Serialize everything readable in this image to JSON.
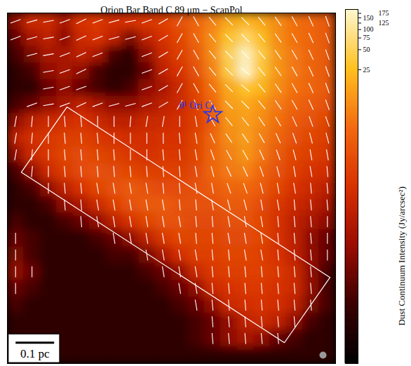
{
  "chart_data": {
    "type": "heatmap",
    "title": "Orion Bar Band C 89 μm − ScanPol",
    "values": [
      [
        0.05,
        0.3,
        0.3,
        0.1,
        0.5,
        0.6,
        0.4,
        0.5,
        0.6,
        0.8,
        1.5,
        3,
        6,
        15,
        20,
        15,
        8,
        4,
        3,
        2
      ],
      [
        0.02,
        0.1,
        0.2,
        0.05,
        0.3,
        0.5,
        0.2,
        0.03,
        0.2,
        0.5,
        1,
        3,
        8,
        30,
        60,
        25,
        8,
        4,
        3,
        2
      ],
      [
        0.01,
        0.03,
        0.1,
        0.1,
        0.2,
        0.1,
        0.01,
        0.005,
        0.05,
        0.3,
        0.8,
        2,
        8,
        50,
        150,
        40,
        10,
        5,
        3,
        2
      ],
      [
        0.005,
        0.01,
        0.05,
        0.1,
        0.05,
        0.01,
        0.005,
        0.005,
        0.02,
        0.2,
        0.5,
        1.5,
        6,
        40,
        175,
        35,
        10,
        5,
        3,
        2
      ],
      [
        0.005,
        0.005,
        0.02,
        0.05,
        0.02,
        0.01,
        0.005,
        0.01,
        0.05,
        0.1,
        0.3,
        1,
        4,
        15,
        30,
        20,
        8,
        4,
        3,
        2
      ],
      [
        0.01,
        0.02,
        0.05,
        0.1,
        0.2,
        0.1,
        0.05,
        0.05,
        0.1,
        0.2,
        0.3,
        0.8,
        3,
        12,
        15,
        10,
        5,
        3,
        2,
        1.5
      ],
      [
        0.05,
        0.2,
        0.3,
        0.4,
        0.5,
        0.3,
        0.2,
        0.2,
        0.3,
        0.3,
        0.4,
        0.8,
        2,
        10,
        12,
        8,
        4,
        2,
        1.5,
        1
      ],
      [
        0.2,
        0.4,
        0.6,
        0.8,
        0.8,
        0.6,
        0.5,
        0.4,
        0.4,
        0.5,
        0.5,
        1,
        3,
        8,
        12,
        6,
        3,
        1.5,
        1,
        0.8
      ],
      [
        0.05,
        0.3,
        0.6,
        1,
        1.2,
        1,
        0.8,
        0.6,
        0.5,
        0.6,
        0.6,
        1,
        3,
        6,
        10,
        5,
        2,
        1,
        0.8,
        0.6
      ],
      [
        0.01,
        0.05,
        0.3,
        0.7,
        1.2,
        1.5,
        1.2,
        1,
        0.8,
        0.8,
        0.8,
        1.2,
        3,
        5,
        6,
        3,
        1.5,
        0.8,
        0.5,
        0.4
      ],
      [
        0.005,
        0.01,
        0.05,
        0.2,
        0.5,
        1,
        1.5,
        2,
        1.5,
        1.2,
        1.2,
        1.5,
        2,
        3,
        3,
        2,
        1,
        0.5,
        0.3,
        0.2
      ],
      [
        0.005,
        0.005,
        0.01,
        0.05,
        0.1,
        0.3,
        0.8,
        1.5,
        2,
        2,
        1.5,
        1.5,
        1.5,
        2,
        2,
        1.2,
        0.6,
        0.3,
        0.2,
        0.1
      ],
      [
        0.01,
        0.005,
        0.005,
        0.01,
        0.02,
        0.05,
        0.2,
        0.5,
        1,
        1.5,
        1.5,
        1.2,
        1.2,
        1.5,
        1.5,
        1,
        0.5,
        0.2,
        0.1,
        0.05
      ],
      [
        0.02,
        0.01,
        0.005,
        0.005,
        0.005,
        0.01,
        0.02,
        0.05,
        0.2,
        0.6,
        1,
        1,
        1,
        1.2,
        1.2,
        1,
        0.5,
        0.2,
        0.05,
        0.02
      ],
      [
        0.03,
        0.01,
        0.005,
        0.005,
        0.005,
        0.005,
        0.01,
        0.01,
        0.03,
        0.1,
        0.4,
        0.8,
        0.8,
        1,
        1,
        0.8,
        0.5,
        0.2,
        0.05,
        0.02
      ],
      [
        0.05,
        0.02,
        0.005,
        0.005,
        0.005,
        0.005,
        0.005,
        0.005,
        0.01,
        0.02,
        0.05,
        0.3,
        0.6,
        0.8,
        0.8,
        0.8,
        0.6,
        0.3,
        0.05,
        0.01
      ],
      [
        0.02,
        0.01,
        0.005,
        0.005,
        0.005,
        0.005,
        0.005,
        0.005,
        0.005,
        0.01,
        0.02,
        0.05,
        0.3,
        0.5,
        0.6,
        0.6,
        0.5,
        0.3,
        0.05,
        0.01
      ],
      [
        0.01,
        0.005,
        0.005,
        0.005,
        0.005,
        0.005,
        0.005,
        0.005,
        0.005,
        0.005,
        0.01,
        0.02,
        0.05,
        0.3,
        0.4,
        0.5,
        0.4,
        0.2,
        0.03,
        0.01
      ],
      [
        0.005,
        0.005,
        0.005,
        0.005,
        0.005,
        0.005,
        0.005,
        0.005,
        0.005,
        0.005,
        0.005,
        0.01,
        0.02,
        0.05,
        0.2,
        0.3,
        0.2,
        0.05,
        0.01,
        0.005
      ],
      [
        0.005,
        0.005,
        0.005,
        0.005,
        0.005,
        0.005,
        0.005,
        0.005,
        0.005,
        0.005,
        0.005,
        0.01,
        0.02,
        0.05,
        0.1,
        0.05,
        0.02,
        0.01,
        0.005,
        0.005
      ],
      [
        0.01,
        0.005,
        0.005,
        0.005,
        0.005,
        0.005,
        0.005,
        0.005,
        0.005,
        0.005,
        0.005,
        0.005,
        0.005,
        0.005,
        0.005,
        0.005,
        0.005,
        0.005,
        0.005,
        0.005
      ]
    ],
    "angles": [
      [
        20,
        15,
        10,
        20,
        25,
        20,
        15,
        10,
        20,
        30,
        60,
        120,
        130,
        135,
        135,
        130,
        125,
        120,
        115,
        110
      ],
      [
        20,
        15,
        10,
        20,
        25,
        20,
        15,
        15,
        20,
        30,
        60,
        120,
        130,
        135,
        135,
        130,
        125,
        120,
        115,
        110
      ],
      [
        null,
        15,
        10,
        20,
        25,
        20,
        null,
        null,
        20,
        30,
        60,
        120,
        130,
        135,
        135,
        130,
        125,
        120,
        115,
        110
      ],
      [
        null,
        null,
        10,
        20,
        25,
        null,
        null,
        null,
        20,
        30,
        60,
        120,
        130,
        135,
        140,
        130,
        125,
        120,
        115,
        110
      ],
      [
        null,
        null,
        10,
        20,
        20,
        null,
        null,
        null,
        20,
        30,
        60,
        120,
        130,
        135,
        140,
        130,
        125,
        120,
        115,
        110
      ],
      [
        null,
        20,
        10,
        20,
        25,
        20,
        15,
        15,
        20,
        30,
        60,
        110,
        125,
        135,
        135,
        130,
        125,
        120,
        115,
        110
      ],
      [
        80,
        85,
        90,
        95,
        95,
        90,
        90,
        85,
        80,
        80,
        90,
        100,
        120,
        130,
        130,
        125,
        120,
        115,
        110,
        110
      ],
      [
        80,
        85,
        90,
        95,
        95,
        95,
        90,
        90,
        90,
        90,
        95,
        100,
        115,
        125,
        125,
        120,
        115,
        110,
        105,
        105
      ],
      [
        80,
        85,
        90,
        95,
        95,
        95,
        95,
        90,
        90,
        95,
        95,
        100,
        110,
        120,
        120,
        115,
        110,
        105,
        100,
        100
      ],
      [
        null,
        85,
        90,
        95,
        95,
        95,
        95,
        95,
        95,
        95,
        95,
        100,
        105,
        115,
        115,
        110,
        105,
        100,
        100,
        95
      ],
      [
        null,
        null,
        90,
        95,
        95,
        100,
        100,
        100,
        100,
        95,
        95,
        100,
        100,
        110,
        110,
        105,
        100,
        100,
        95,
        95
      ],
      [
        null,
        null,
        null,
        95,
        95,
        100,
        100,
        100,
        100,
        100,
        95,
        95,
        100,
        105,
        105,
        100,
        100,
        95,
        95,
        95
      ],
      [
        null,
        null,
        null,
        null,
        95,
        100,
        100,
        100,
        100,
        100,
        100,
        95,
        95,
        100,
        100,
        100,
        95,
        95,
        95,
        90
      ],
      [
        90,
        null,
        null,
        null,
        null,
        null,
        100,
        100,
        100,
        100,
        100,
        95,
        95,
        100,
        100,
        100,
        95,
        95,
        95,
        90
      ],
      [
        90,
        null,
        null,
        null,
        null,
        null,
        null,
        null,
        100,
        100,
        100,
        100,
        95,
        95,
        100,
        100,
        95,
        95,
        95,
        90
      ],
      [
        90,
        90,
        null,
        null,
        null,
        null,
        null,
        null,
        null,
        100,
        100,
        100,
        95,
        95,
        95,
        95,
        95,
        95,
        95,
        null
      ],
      [
        90,
        null,
        null,
        null,
        null,
        null,
        null,
        null,
        null,
        null,
        100,
        100,
        95,
        95,
        95,
        95,
        95,
        95,
        95,
        null
      ],
      [
        null,
        null,
        null,
        null,
        null,
        null,
        null,
        null,
        null,
        null,
        null,
        100,
        95,
        95,
        95,
        95,
        95,
        95,
        95,
        null
      ],
      [
        null,
        null,
        null,
        null,
        null,
        null,
        null,
        null,
        null,
        null,
        null,
        null,
        95,
        95,
        95,
        95,
        95,
        95,
        null,
        null
      ],
      [
        null,
        null,
        null,
        null,
        null,
        null,
        null,
        null,
        null,
        null,
        null,
        null,
        95,
        95,
        95,
        95,
        95,
        null,
        null,
        null
      ],
      [
        null,
        null,
        null,
        null,
        null,
        null,
        null,
        null,
        null,
        null,
        null,
        null,
        null,
        null,
        null,
        null,
        null,
        null,
        null,
        null
      ]
    ],
    "colorbar": {
      "label": "Dust Continuum Intensity (Jy/arcsec²)",
      "range": [
        0.001,
        200
      ],
      "ticks": [
        25,
        50,
        75,
        100,
        125,
        150,
        175
      ],
      "log": true
    },
    "box": {
      "x": [
        3.63,
        0.85,
        16.88,
        19.66
      ],
      "y": [
        5.63,
        9.54,
        19.75,
        15.84
      ]
    },
    "annotations": [
      {
        "text": "θ¹ Ori C",
        "x": 12.52,
        "y": 6.09,
        "marker": "star",
        "color": "#2233ee"
      }
    ],
    "scale_bar": {
      "label": "0.1 pc",
      "length": 2.35
    }
  }
}
